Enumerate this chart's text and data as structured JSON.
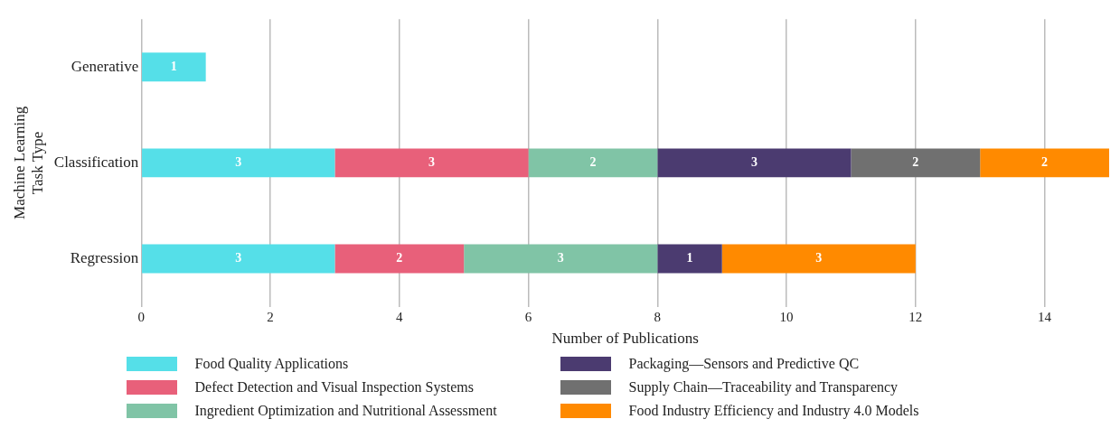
{
  "chart_data": {
    "type": "bar",
    "orientation": "horizontal",
    "stacked": true,
    "xlabel": "Number of Publications",
    "ylabel": "Machine Learning\nTask Type",
    "categories": [
      "Generative",
      "Classification",
      "Regression"
    ],
    "series": [
      {
        "name": "Food Quality Applications",
        "color": "#55dfe8",
        "values": [
          1,
          3,
          3
        ]
      },
      {
        "name": "Defect Detection and Visual Inspection Systems",
        "color": "#e8607a",
        "values": [
          null,
          3,
          2
        ]
      },
      {
        "name": "Ingredient Optimization and Nutritional Assessment",
        "color": "#80c4a6",
        "values": [
          null,
          2,
          3
        ]
      },
      {
        "name": "Packaging—Sensors and Predictive QC",
        "color": "#4b3b70",
        "values": [
          null,
          3,
          1
        ]
      },
      {
        "name": "Supply Chain—Traceability and Transparency",
        "color": "#707070",
        "values": [
          null,
          2,
          null
        ]
      },
      {
        "name": "Food Industry Efficiency and Industry 4.0 Models",
        "color": "#ff8a00",
        "values": [
          null,
          2,
          3
        ]
      }
    ],
    "xlim": [
      0,
      15
    ],
    "xticks": [
      0,
      2,
      4,
      6,
      8,
      10,
      12,
      14
    ],
    "grid": "x",
    "legend": "bottom",
    "data_labels": true
  }
}
